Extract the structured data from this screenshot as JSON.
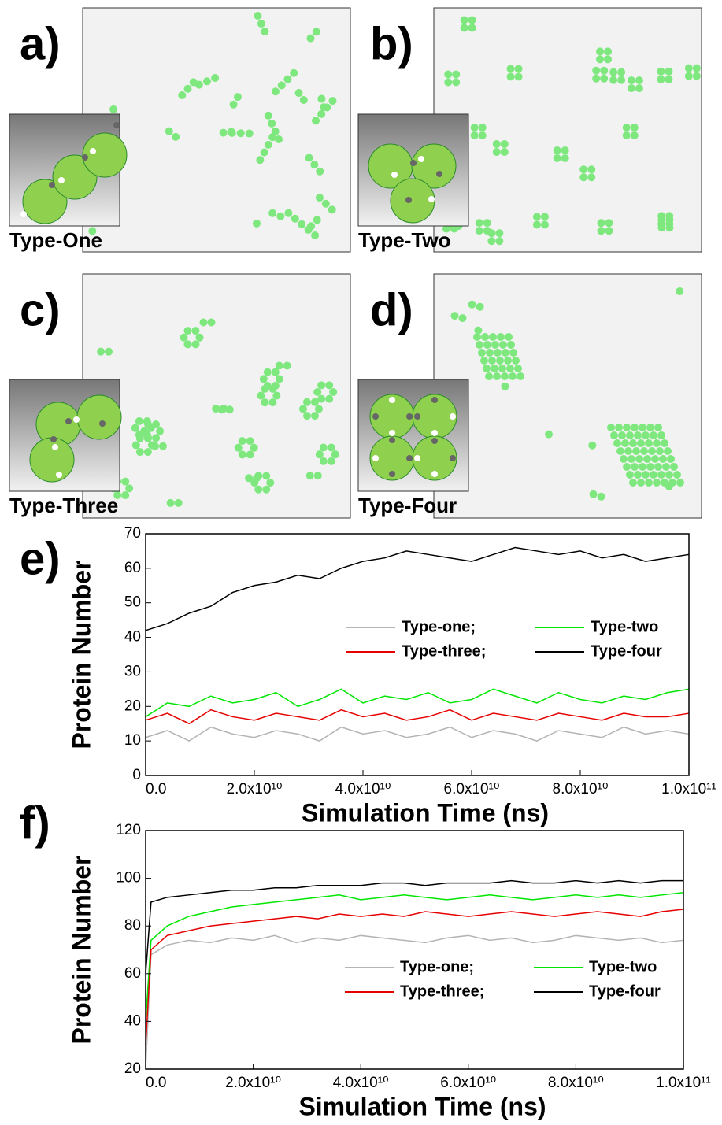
{
  "panels": [
    {
      "label": "a)",
      "caption": "Type-One"
    },
    {
      "label": "b)",
      "caption": "Type-Two"
    },
    {
      "label": "c)",
      "caption": "Type-Three"
    },
    {
      "label": "d)",
      "caption": "Type-Four"
    }
  ],
  "chart_data": [
    {
      "type": "line",
      "label": "e)",
      "x_label": "Simulation Time (ns)",
      "y_label": "Protein Number",
      "xlim": [
        0,
        100000000000
      ],
      "ylim": [
        0,
        70
      ],
      "xticks": [
        {
          "value": 0,
          "label": "0.0"
        },
        {
          "value": 20000000000,
          "label": "2.0x10¹⁰"
        },
        {
          "value": 40000000000,
          "label": "4.0x10¹⁰"
        },
        {
          "value": 60000000000,
          "label": "6.0x10¹⁰"
        },
        {
          "value": 80000000000,
          "label": "8.0x10¹⁰"
        },
        {
          "value": 100000000000,
          "label": "1.0x10¹¹"
        }
      ],
      "yticks": [
        0,
        10,
        20,
        30,
        40,
        50,
        60,
        70
      ],
      "x": [
        0,
        4000000000,
        8000000000,
        12000000000,
        16000000000,
        20000000000,
        24000000000,
        28000000000,
        32000000000,
        36000000000,
        40000000000,
        44000000000,
        48000000000,
        52000000000,
        56000000000,
        60000000000,
        64000000000,
        68000000000,
        72000000000,
        76000000000,
        80000000000,
        84000000000,
        88000000000,
        92000000000,
        96000000000,
        100000000000
      ],
      "series": [
        {
          "name": "Type-one;",
          "color": "#b4b4b4",
          "values": [
            11,
            13,
            10,
            14,
            12,
            11,
            13,
            12,
            10,
            14,
            12,
            13,
            11,
            12,
            14,
            11,
            13,
            12,
            10,
            13,
            12,
            11,
            14,
            12,
            13,
            12
          ]
        },
        {
          "name": "Type-two",
          "color": "#00e600",
          "values": [
            17,
            21,
            20,
            23,
            21,
            22,
            24,
            20,
            22,
            25,
            21,
            23,
            22,
            24,
            21,
            22,
            25,
            23,
            21,
            24,
            22,
            21,
            23,
            22,
            24,
            25
          ]
        },
        {
          "name": "Type-three;",
          "color": "#e60000",
          "values": [
            16,
            18,
            15,
            19,
            17,
            16,
            18,
            17,
            16,
            19,
            17,
            18,
            16,
            17,
            19,
            16,
            18,
            17,
            16,
            18,
            17,
            16,
            18,
            17,
            17,
            18
          ]
        },
        {
          "name": "Type-four",
          "color": "#000000",
          "values": [
            42,
            44,
            47,
            49,
            53,
            55,
            56,
            58,
            57,
            60,
            62,
            63,
            65,
            64,
            63,
            62,
            64,
            66,
            65,
            64,
            65,
            63,
            64,
            62,
            63,
            64
          ]
        }
      ]
    },
    {
      "type": "line",
      "label": "f)",
      "x_label": "Simulation Time (ns)",
      "y_label": "Protein Number",
      "xlim": [
        0,
        100000000000
      ],
      "ylim": [
        20,
        120
      ],
      "xticks": [
        {
          "value": 0,
          "label": "0.0"
        },
        {
          "value": 20000000000,
          "label": "2.0x10¹⁰"
        },
        {
          "value": 40000000000,
          "label": "4.0x10¹⁰"
        },
        {
          "value": 60000000000,
          "label": "6.0x10¹⁰"
        },
        {
          "value": 80000000000,
          "label": "8.0x10¹⁰"
        },
        {
          "value": 100000000000,
          "label": "1.0x10¹¹"
        }
      ],
      "yticks": [
        20,
        40,
        60,
        80,
        100,
        120
      ],
      "x": [
        0,
        1000000000,
        4000000000,
        8000000000,
        12000000000,
        16000000000,
        20000000000,
        24000000000,
        28000000000,
        32000000000,
        36000000000,
        40000000000,
        44000000000,
        48000000000,
        52000000000,
        56000000000,
        60000000000,
        64000000000,
        68000000000,
        72000000000,
        76000000000,
        80000000000,
        84000000000,
        88000000000,
        92000000000,
        96000000000,
        100000000000
      ],
      "series": [
        {
          "name": "Type-one;",
          "color": "#b4b4b4",
          "values": [
            20,
            68,
            72,
            74,
            73,
            75,
            74,
            76,
            73,
            75,
            74,
            76,
            75,
            74,
            73,
            75,
            76,
            74,
            75,
            73,
            74,
            76,
            75,
            74,
            75,
            73,
            74
          ]
        },
        {
          "name": "Type-two",
          "color": "#00e600",
          "values": [
            40,
            74,
            80,
            84,
            86,
            88,
            89,
            90,
            91,
            92,
            93,
            91,
            92,
            93,
            92,
            91,
            92,
            93,
            92,
            91,
            92,
            93,
            92,
            93,
            92,
            93,
            94
          ]
        },
        {
          "name": "Type-three;",
          "color": "#e60000",
          "values": [
            30,
            70,
            76,
            78,
            80,
            81,
            82,
            83,
            84,
            83,
            85,
            84,
            85,
            84,
            86,
            85,
            84,
            85,
            86,
            85,
            84,
            85,
            86,
            85,
            84,
            86,
            87
          ]
        },
        {
          "name": "Type-four",
          "color": "#000000",
          "values": [
            60,
            90,
            92,
            93,
            94,
            95,
            95,
            96,
            96,
            97,
            97,
            97,
            98,
            98,
            97,
            98,
            98,
            98,
            99,
            98,
            98,
            99,
            98,
            99,
            98,
            99,
            99
          ]
        }
      ]
    }
  ]
}
